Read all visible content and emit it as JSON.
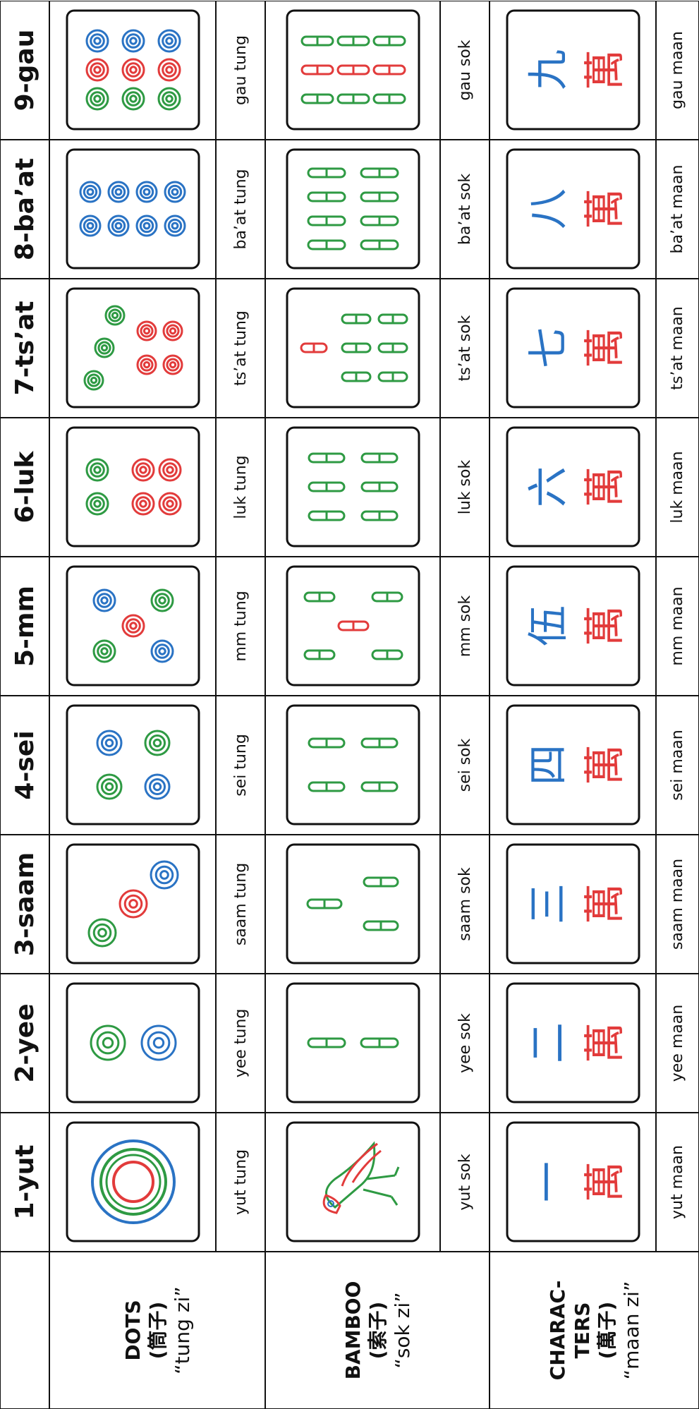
{
  "table": {
    "columns": [
      "1-yut",
      "2-yee",
      "3-saam",
      "4-sei",
      "5-mm",
      "6-luk",
      "7-ts’at",
      "8-ba’at",
      "9-gau"
    ],
    "rows": [
      {
        "label_lines": [
          "DOTS"
        ],
        "chinese": "(筒子)",
        "romanization": "“tung zi”",
        "names": [
          "yut tung",
          "yee tung",
          "saam tung",
          "sei tung",
          "mm tung",
          "luk tung",
          "ts’at tung",
          "ba’at tung",
          "gau tung"
        ]
      },
      {
        "label_lines": [
          "BAMBOO"
        ],
        "chinese": "(索子)",
        "romanization": "“sok zi”",
        "names": [
          "yut sok",
          "yee sok",
          "saam sok",
          "sei sok",
          "mm sok",
          "luk sok",
          "ts’at sok",
          "ba’at sok",
          "gau sok"
        ]
      },
      {
        "label_lines": [
          "CHARAC-",
          "TERS"
        ],
        "chinese": "(萬子)",
        "romanization": "“maan zi”",
        "names": [
          "yut maan",
          "yee maan",
          "saam maan",
          "sei maan",
          "mm maan",
          "luk maan",
          "ts’at maan",
          "ba’at maan",
          "gau maan"
        ],
        "tiles": [
          [
            "一",
            "萬"
          ],
          [
            "二",
            "萬"
          ],
          [
            "三",
            "萬"
          ],
          [
            "四",
            "萬"
          ],
          [
            "伍",
            "萬"
          ],
          [
            "六",
            "萬"
          ],
          [
            "七",
            "萬"
          ],
          [
            "八",
            "萬"
          ],
          [
            "九",
            "萬"
          ]
        ]
      }
    ]
  }
}
